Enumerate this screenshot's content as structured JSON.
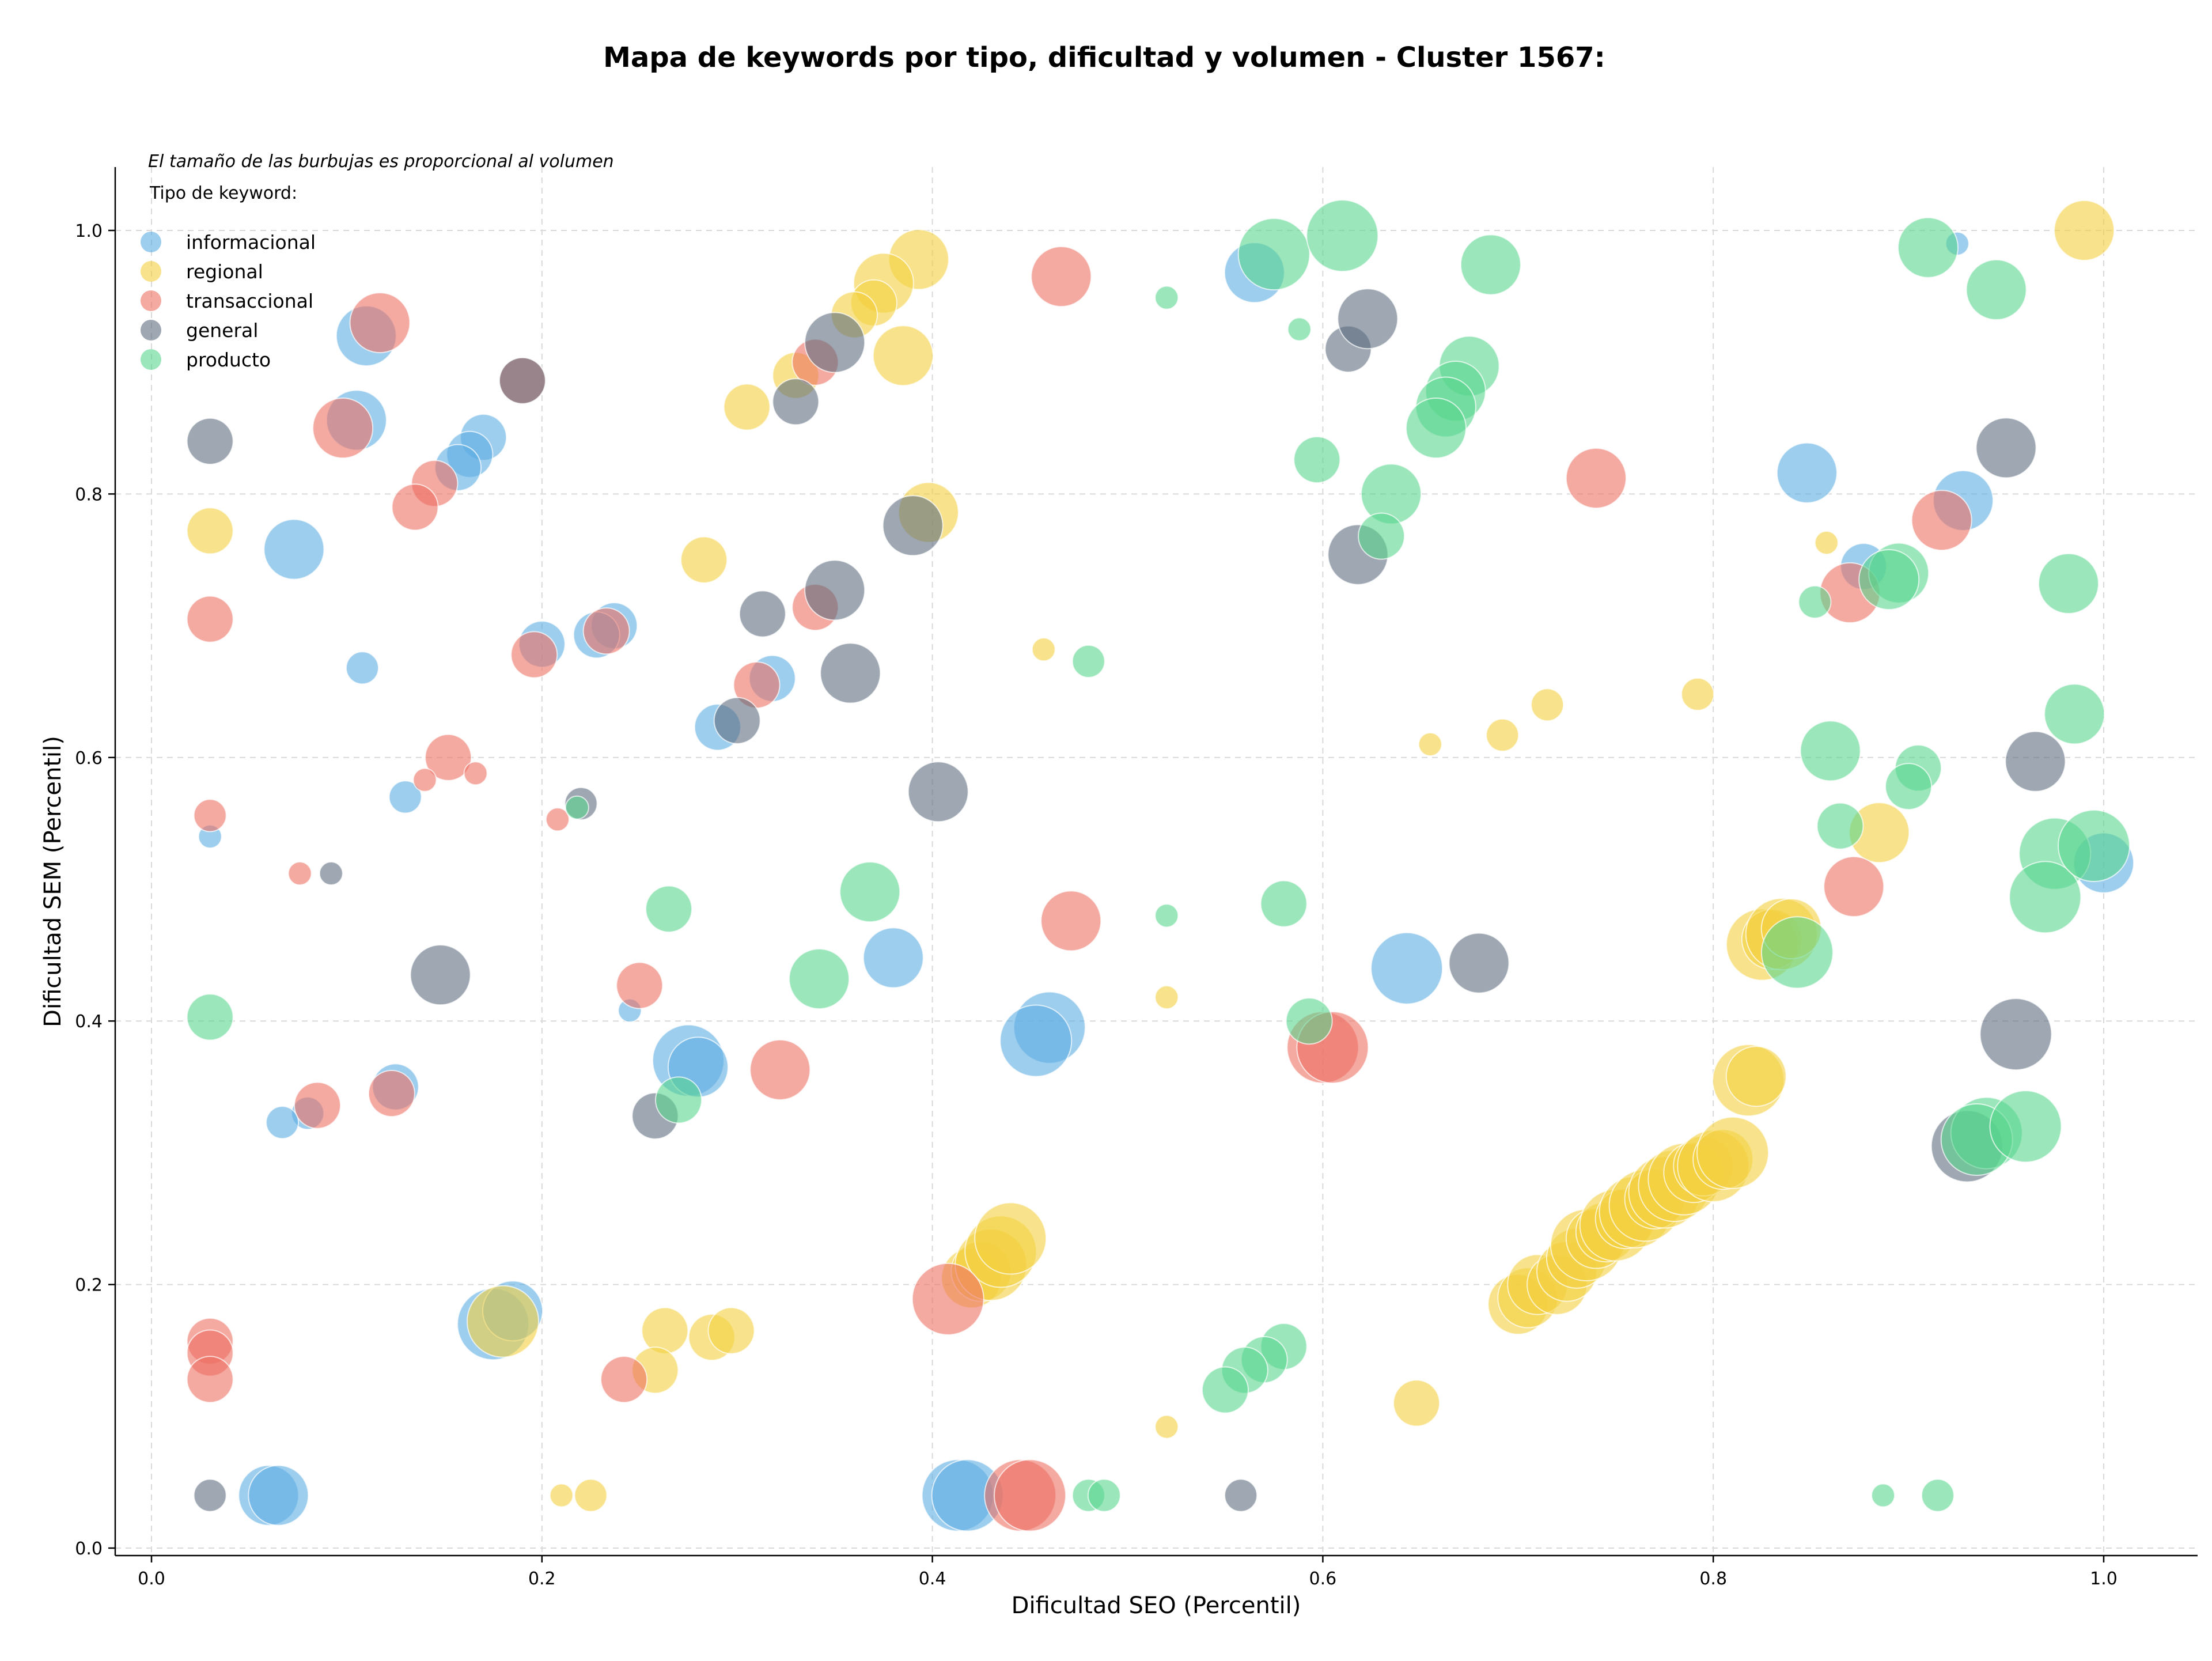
{
  "chart_data": {
    "type": "scatter",
    "title": "Mapa de keywords por tipo, dificultad y volumen - Cluster 1567:",
    "xlabel": "Dificultad SEO (Percentil)",
    "ylabel": "Dificultad SEM (Percentil)",
    "xlim": [
      -0.02,
      1.05
    ],
    "ylim": [
      -0.005,
      1.05
    ],
    "xticks": [
      "0.0",
      "0.2",
      "0.4",
      "0.6",
      "0.8",
      "1.0"
    ],
    "yticks": [
      "0.0",
      "0.2",
      "0.4",
      "0.6",
      "0.8",
      "1.0"
    ],
    "grid": true,
    "note": "El tamaño de las burbujas es proporcional al volumen",
    "legend": {
      "title": "Tipo de keyword:",
      "position": "upper-left"
    },
    "series": [
      {
        "name": "informacional",
        "color": "#5DADE2",
        "points": [
          [
            0.11,
            0.92,
            3
          ],
          [
            0.105,
            0.856,
            3
          ],
          [
            0.17,
            0.843,
            2
          ],
          [
            0.163,
            0.83,
            2
          ],
          [
            0.157,
            0.82,
            2
          ],
          [
            0.073,
            0.758,
            3
          ],
          [
            0.108,
            0.668,
            1
          ],
          [
            0.2,
            0.686,
            2
          ],
          [
            0.237,
            0.7,
            2
          ],
          [
            0.228,
            0.693,
            2
          ],
          [
            0.29,
            0.623,
            2
          ],
          [
            0.318,
            0.66,
            2
          ],
          [
            0.13,
            0.57,
            1
          ],
          [
            0.03,
            0.54,
            0
          ],
          [
            0.245,
            0.408,
            0
          ],
          [
            0.125,
            0.35,
            2
          ],
          [
            0.08,
            0.33,
            1
          ],
          [
            0.067,
            0.323,
            1
          ],
          [
            0.275,
            0.37,
            4
          ],
          [
            0.28,
            0.365,
            3
          ],
          [
            0.38,
            0.448,
            3
          ],
          [
            0.46,
            0.395,
            4
          ],
          [
            0.453,
            0.385,
            4
          ],
          [
            0.175,
            0.17,
            4
          ],
          [
            0.185,
            0.18,
            3
          ],
          [
            0.06,
            0.04,
            3
          ],
          [
            0.065,
            0.04,
            3
          ],
          [
            0.413,
            0.04,
            4
          ],
          [
            0.418,
            0.04,
            4
          ],
          [
            0.565,
            0.968,
            3
          ],
          [
            0.643,
            0.44,
            4
          ],
          [
            0.848,
            0.816,
            3
          ],
          [
            0.928,
            0.795,
            3
          ],
          [
            0.877,
            0.745,
            2
          ],
          [
            0.925,
            0.99,
            0
          ],
          [
            1.0,
            0.52,
            3
          ]
        ]
      },
      {
        "name": "regional",
        "color": "#F4D03F",
        "points": [
          [
            0.393,
            0.978,
            3
          ],
          [
            0.375,
            0.96,
            3
          ],
          [
            0.37,
            0.945,
            2
          ],
          [
            0.36,
            0.936,
            2
          ],
          [
            0.385,
            0.905,
            3
          ],
          [
            0.33,
            0.89,
            2
          ],
          [
            0.305,
            0.866,
            2
          ],
          [
            0.398,
            0.786,
            3
          ],
          [
            0.283,
            0.75,
            2
          ],
          [
            0.03,
            0.772,
            2
          ],
          [
            0.457,
            0.682,
            0
          ],
          [
            0.263,
            0.165,
            2
          ],
          [
            0.258,
            0.135,
            2
          ],
          [
            0.287,
            0.16,
            2
          ],
          [
            0.297,
            0.165,
            2
          ],
          [
            0.18,
            0.172,
            4
          ],
          [
            0.21,
            0.04,
            0
          ],
          [
            0.225,
            0.04,
            1
          ],
          [
            0.52,
            0.418,
            0
          ],
          [
            0.52,
            0.092,
            0
          ],
          [
            0.655,
            0.61,
            0
          ],
          [
            0.692,
            0.617,
            1
          ],
          [
            0.715,
            0.64,
            1
          ],
          [
            0.792,
            0.648,
            1
          ],
          [
            0.648,
            0.11,
            2
          ],
          [
            0.858,
            0.763,
            0
          ],
          [
            0.885,
            0.543,
            3
          ],
          [
            0.99,
            1.0,
            3
          ],
          [
            0.42,
            0.205,
            3
          ],
          [
            0.425,
            0.21,
            3
          ],
          [
            0.43,
            0.215,
            4
          ],
          [
            0.435,
            0.225,
            4
          ],
          [
            0.44,
            0.235,
            4
          ],
          [
            0.7,
            0.185,
            3
          ],
          [
            0.705,
            0.19,
            3
          ],
          [
            0.71,
            0.2,
            3
          ],
          [
            0.72,
            0.2,
            3
          ],
          [
            0.725,
            0.21,
            3
          ],
          [
            0.73,
            0.22,
            3
          ],
          [
            0.735,
            0.23,
            4
          ],
          [
            0.74,
            0.235,
            3
          ],
          [
            0.745,
            0.24,
            3
          ],
          [
            0.75,
            0.245,
            4
          ],
          [
            0.755,
            0.25,
            3
          ],
          [
            0.76,
            0.255,
            4
          ],
          [
            0.765,
            0.26,
            4
          ],
          [
            0.77,
            0.265,
            3
          ],
          [
            0.775,
            0.27,
            4
          ],
          [
            0.78,
            0.275,
            4
          ],
          [
            0.785,
            0.28,
            4
          ],
          [
            0.79,
            0.285,
            3
          ],
          [
            0.795,
            0.29,
            3
          ],
          [
            0.8,
            0.29,
            4
          ],
          [
            0.805,
            0.295,
            3
          ],
          [
            0.81,
            0.3,
            4
          ],
          [
            0.818,
            0.355,
            4
          ],
          [
            0.822,
            0.358,
            3
          ],
          [
            0.825,
            0.458,
            4
          ],
          [
            0.83,
            0.462,
            3
          ],
          [
            0.835,
            0.466,
            4
          ],
          [
            0.84,
            0.47,
            3
          ]
        ]
      },
      {
        "name": "transaccional",
        "color": "#EC7063",
        "points": [
          [
            0.117,
            0.93,
            3
          ],
          [
            0.098,
            0.85,
            3
          ],
          [
            0.19,
            0.886,
            2
          ],
          [
            0.145,
            0.808,
            2
          ],
          [
            0.135,
            0.79,
            2
          ],
          [
            0.03,
            0.705,
            2
          ],
          [
            0.196,
            0.678,
            2
          ],
          [
            0.233,
            0.696,
            2
          ],
          [
            0.31,
            0.655,
            2
          ],
          [
            0.34,
            0.714,
            2
          ],
          [
            0.34,
            0.9,
            2
          ],
          [
            0.152,
            0.6,
            2
          ],
          [
            0.14,
            0.583,
            0
          ],
          [
            0.166,
            0.588,
            0
          ],
          [
            0.208,
            0.553,
            0
          ],
          [
            0.03,
            0.556,
            1
          ],
          [
            0.076,
            0.512,
            0
          ],
          [
            0.25,
            0.427,
            2
          ],
          [
            0.322,
            0.363,
            3
          ],
          [
            0.123,
            0.345,
            2
          ],
          [
            0.085,
            0.336,
            2
          ],
          [
            0.03,
            0.157,
            2
          ],
          [
            0.03,
            0.148,
            2
          ],
          [
            0.03,
            0.128,
            2
          ],
          [
            0.242,
            0.128,
            2
          ],
          [
            0.408,
            0.189,
            4
          ],
          [
            0.445,
            0.04,
            4
          ],
          [
            0.45,
            0.04,
            4
          ],
          [
            0.466,
            0.965,
            3
          ],
          [
            0.471,
            0.476,
            3
          ],
          [
            0.6,
            0.38,
            4
          ],
          [
            0.605,
            0.38,
            4
          ],
          [
            0.74,
            0.812,
            3
          ],
          [
            0.872,
            0.502,
            3
          ],
          [
            0.87,
            0.725,
            3
          ],
          [
            0.917,
            0.78,
            3
          ]
        ]
      },
      {
        "name": "general",
        "color": "#5D6D7E",
        "points": [
          [
            0.03,
            0.84,
            2
          ],
          [
            0.19,
            0.886,
            2
          ],
          [
            0.092,
            0.512,
            0
          ],
          [
            0.148,
            0.435,
            3
          ],
          [
            0.22,
            0.565,
            1
          ],
          [
            0.03,
            0.04,
            1
          ],
          [
            0.258,
            0.328,
            2
          ],
          [
            0.3,
            0.628,
            2
          ],
          [
            0.313,
            0.709,
            2
          ],
          [
            0.33,
            0.87,
            2
          ],
          [
            0.35,
            0.915,
            3
          ],
          [
            0.35,
            0.727,
            3
          ],
          [
            0.358,
            0.664,
            3
          ],
          [
            0.39,
            0.776,
            3
          ],
          [
            0.403,
            0.574,
            3
          ],
          [
            0.558,
            0.04,
            1
          ],
          [
            0.613,
            0.91,
            2
          ],
          [
            0.623,
            0.933,
            3
          ],
          [
            0.618,
            0.754,
            3
          ],
          [
            0.68,
            0.444,
            3
          ],
          [
            0.95,
            0.835,
            3
          ],
          [
            0.965,
            0.597,
            3
          ],
          [
            0.955,
            0.39,
            4
          ],
          [
            0.93,
            0.305,
            4
          ]
        ]
      },
      {
        "name": "producto",
        "color": "#58D68D",
        "points": [
          [
            0.575,
            0.982,
            4
          ],
          [
            0.61,
            0.996,
            4
          ],
          [
            0.686,
            0.974,
            3
          ],
          [
            0.52,
            0.949,
            0
          ],
          [
            0.588,
            0.925,
            0
          ],
          [
            0.675,
            0.897,
            3
          ],
          [
            0.668,
            0.878,
            3
          ],
          [
            0.663,
            0.866,
            3
          ],
          [
            0.658,
            0.85,
            3
          ],
          [
            0.597,
            0.826,
            2
          ],
          [
            0.635,
            0.8,
            3
          ],
          [
            0.63,
            0.768,
            2
          ],
          [
            0.48,
            0.673,
            1
          ],
          [
            0.52,
            0.48,
            0
          ],
          [
            0.58,
            0.489,
            2
          ],
          [
            0.593,
            0.4,
            2
          ],
          [
            0.265,
            0.485,
            2
          ],
          [
            0.368,
            0.498,
            3
          ],
          [
            0.342,
            0.432,
            3
          ],
          [
            0.27,
            0.34,
            2
          ],
          [
            0.218,
            0.562,
            0
          ],
          [
            0.03,
            0.403,
            2
          ],
          [
            0.58,
            0.153,
            2
          ],
          [
            0.57,
            0.143,
            2
          ],
          [
            0.56,
            0.135,
            2
          ],
          [
            0.55,
            0.12,
            2
          ],
          [
            0.48,
            0.04,
            1
          ],
          [
            0.488,
            0.04,
            1
          ],
          [
            0.91,
            0.987,
            3
          ],
          [
            0.945,
            0.955,
            3
          ],
          [
            0.852,
            0.718,
            1
          ],
          [
            0.895,
            0.74,
            3
          ],
          [
            0.89,
            0.735,
            3
          ],
          [
            0.982,
            0.732,
            3
          ],
          [
            0.985,
            0.633,
            3
          ],
          [
            0.86,
            0.605,
            3
          ],
          [
            0.865,
            0.548,
            2
          ],
          [
            0.905,
            0.592,
            2
          ],
          [
            0.9,
            0.578,
            2
          ],
          [
            0.975,
            0.527,
            4
          ],
          [
            0.97,
            0.494,
            4
          ],
          [
            0.995,
            0.533,
            4
          ],
          [
            0.843,
            0.452,
            4
          ],
          [
            0.94,
            0.315,
            4
          ],
          [
            0.935,
            0.31,
            4
          ],
          [
            0.96,
            0.32,
            4
          ],
          [
            0.887,
            0.04,
            0
          ],
          [
            0.915,
            0.04,
            1
          ]
        ]
      }
    ]
  }
}
